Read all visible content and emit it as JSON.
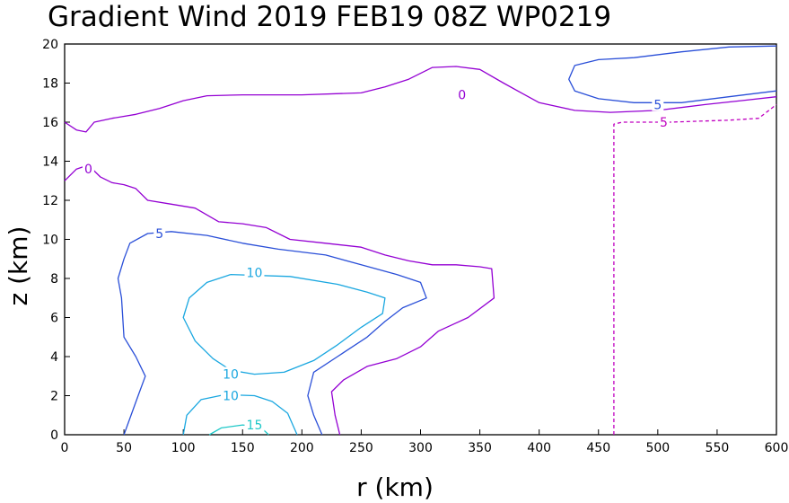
{
  "chart_data": {
    "type": "contour",
    "title": "Gradient Wind 2019 FEB19 08Z  WP0219",
    "xlabel": "r (km)",
    "ylabel": "z (km)",
    "xlim": [
      0,
      600
    ],
    "ylim": [
      0,
      20
    ],
    "xticks": [
      "0",
      "50",
      "100",
      "150",
      "200",
      "250",
      "300",
      "350",
      "400",
      "450",
      "500",
      "550",
      "600"
    ],
    "yticks": [
      "0",
      "2",
      "4",
      "6",
      "8",
      "10",
      "12",
      "14",
      "16",
      "18",
      "20"
    ],
    "grid": false,
    "colors": {
      "0": "#9400d3",
      "5": "#2a4fd8",
      "10": "#1aa7e0",
      "15": "#1ec8c8",
      "neg5": "#c000c0"
    },
    "contours": [
      {
        "level": "0",
        "color_key": "0",
        "dashed": false,
        "label_at": [
          335,
          17.4
        ],
        "points": [
          [
            0,
            16.0
          ],
          [
            10,
            15.6
          ],
          [
            18,
            15.5
          ],
          [
            25,
            16.0
          ],
          [
            40,
            16.2
          ],
          [
            60,
            16.4
          ],
          [
            80,
            16.7
          ],
          [
            100,
            17.1
          ],
          [
            120,
            17.35
          ],
          [
            150,
            17.4
          ],
          [
            200,
            17.4
          ],
          [
            250,
            17.5
          ],
          [
            270,
            17.8
          ],
          [
            290,
            18.2
          ],
          [
            310,
            18.8
          ],
          [
            330,
            18.85
          ],
          [
            350,
            18.7
          ],
          [
            370,
            18.0
          ],
          [
            385,
            17.5
          ],
          [
            400,
            17.0
          ],
          [
            430,
            16.6
          ],
          [
            460,
            16.5
          ],
          [
            500,
            16.6
          ],
          [
            540,
            16.9
          ],
          [
            570,
            17.1
          ],
          [
            600,
            17.3
          ]
        ]
      },
      {
        "level": "0",
        "color_key": "0",
        "dashed": false,
        "label_at": [
          20,
          13.6
        ],
        "points": [
          [
            0,
            13.0
          ],
          [
            10,
            13.6
          ],
          [
            20,
            13.8
          ],
          [
            30,
            13.2
          ],
          [
            40,
            12.9
          ],
          [
            50,
            12.8
          ],
          [
            60,
            12.6
          ],
          [
            70,
            12.0
          ],
          [
            90,
            11.8
          ],
          [
            110,
            11.6
          ],
          [
            130,
            10.9
          ],
          [
            150,
            10.8
          ],
          [
            170,
            10.6
          ],
          [
            190,
            10.0
          ],
          [
            220,
            9.8
          ],
          [
            250,
            9.6
          ],
          [
            270,
            9.2
          ],
          [
            290,
            8.9
          ],
          [
            310,
            8.7
          ],
          [
            330,
            8.7
          ],
          [
            350,
            8.6
          ],
          [
            360,
            8.5
          ],
          [
            362,
            7.0
          ],
          [
            340,
            6.0
          ],
          [
            315,
            5.3
          ],
          [
            300,
            4.5
          ],
          [
            280,
            3.9
          ],
          [
            255,
            3.5
          ],
          [
            235,
            2.8
          ],
          [
            225,
            2.2
          ],
          [
            228,
            1.0
          ],
          [
            232,
            0
          ]
        ]
      },
      {
        "level": "5",
        "color_key": "5",
        "dashed": false,
        "label_at": [
          80,
          10.3
        ],
        "points": [
          [
            50,
            0
          ],
          [
            62,
            2.0
          ],
          [
            68,
            3.0
          ],
          [
            60,
            4.0
          ],
          [
            50,
            5.0
          ],
          [
            48,
            7.0
          ],
          [
            45,
            8.0
          ],
          [
            50,
            9.0
          ],
          [
            55,
            9.8
          ],
          [
            70,
            10.3
          ],
          [
            90,
            10.4
          ],
          [
            120,
            10.2
          ],
          [
            150,
            9.8
          ],
          [
            180,
            9.5
          ],
          [
            220,
            9.2
          ],
          [
            250,
            8.7
          ],
          [
            280,
            8.2
          ],
          [
            300,
            7.8
          ],
          [
            305,
            7.0
          ],
          [
            285,
            6.5
          ],
          [
            270,
            5.8
          ],
          [
            255,
            5.0
          ],
          [
            230,
            4.0
          ],
          [
            210,
            3.2
          ],
          [
            205,
            2.0
          ],
          [
            210,
            1.0
          ],
          [
            217,
            0
          ]
        ]
      },
      {
        "level": "10",
        "color_key": "10",
        "dashed": false,
        "label_at": [
          160,
          8.3
        ],
        "points": [
          [
            140,
            8.2
          ],
          [
            190,
            8.1
          ],
          [
            230,
            7.7
          ],
          [
            255,
            7.3
          ],
          [
            270,
            7.0
          ],
          [
            268,
            6.2
          ],
          [
            250,
            5.5
          ],
          [
            230,
            4.6
          ],
          [
            210,
            3.8
          ],
          [
            185,
            3.2
          ],
          [
            160,
            3.1
          ],
          [
            140,
            3.3
          ],
          [
            125,
            3.9
          ],
          [
            110,
            4.8
          ],
          [
            100,
            6.0
          ],
          [
            105,
            7.0
          ],
          [
            120,
            7.8
          ],
          [
            140,
            8.2
          ]
        ]
      },
      {
        "level": "10",
        "color_key": "10",
        "dashed": false,
        "label_at": [
          140,
          3.1
        ],
        "points": []
      },
      {
        "level": "10",
        "color_key": "10",
        "dashed": false,
        "label_at": [
          140,
          2.0
        ],
        "points": [
          [
            100,
            0
          ],
          [
            103,
            1.0
          ],
          [
            115,
            1.8
          ],
          [
            135,
            2.05
          ],
          [
            160,
            2.0
          ],
          [
            175,
            1.7
          ],
          [
            188,
            1.1
          ],
          [
            196,
            0
          ]
        ]
      },
      {
        "level": "15",
        "color_key": "15",
        "dashed": false,
        "label_at": [
          160,
          0.5
        ],
        "points": [
          [
            122,
            0
          ],
          [
            132,
            0.35
          ],
          [
            150,
            0.5
          ],
          [
            165,
            0.4
          ],
          [
            172,
            0
          ]
        ]
      },
      {
        "level": "5",
        "color_key": "5",
        "dashed": false,
        "label_at": [
          500,
          16.9
        ],
        "points": [
          [
            600,
            19.9
          ],
          [
            560,
            19.85
          ],
          [
            520,
            19.6
          ],
          [
            480,
            19.3
          ],
          [
            450,
            19.2
          ],
          [
            430,
            18.9
          ],
          [
            425,
            18.2
          ],
          [
            430,
            17.6
          ],
          [
            450,
            17.2
          ],
          [
            480,
            17.0
          ],
          [
            520,
            17.0
          ],
          [
            560,
            17.3
          ],
          [
            600,
            17.6
          ]
        ]
      },
      {
        "level": "-5",
        "color_key": "neg5",
        "dashed": true,
        "label_at": [
          505,
          16.0
        ],
        "points": [
          [
            463,
            0
          ],
          [
            463,
            8.0
          ],
          [
            463,
            15.9
          ],
          [
            470,
            16.0
          ],
          [
            510,
            16.0
          ],
          [
            560,
            16.1
          ],
          [
            585,
            16.2
          ],
          [
            600,
            16.9
          ]
        ]
      }
    ]
  }
}
